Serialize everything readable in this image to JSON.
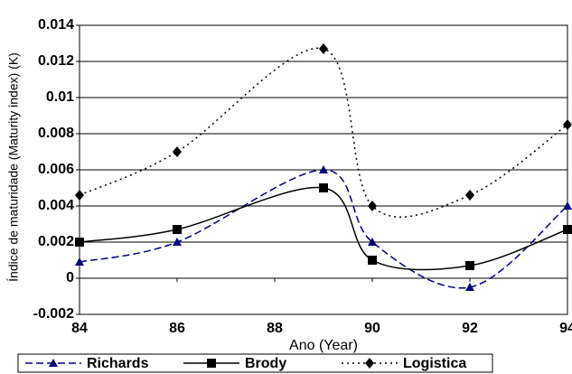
{
  "chart_data": {
    "type": "line",
    "xlabel": "Ano (Year)",
    "ylabel": "Índice de maturidade (Maturity index) (K)",
    "x": [
      84,
      86,
      89,
      90,
      92,
      94
    ],
    "xlim": [
      84,
      94
    ],
    "xticks": [
      84,
      86,
      88,
      90,
      92,
      94
    ],
    "ylim": [
      -0.002,
      0.014
    ],
    "yticks": [
      -0.002,
      0,
      0.002,
      0.004,
      0.006,
      0.008,
      0.01,
      0.012,
      0.014
    ],
    "grid": true,
    "smooth": true,
    "legend": "bottom",
    "series": [
      {
        "name": "Richards",
        "color": "#000080",
        "dash": "dashed",
        "marker": "triangle",
        "values": [
          0.0009,
          0.002,
          0.006,
          0.002,
          -0.0005,
          0.004
        ]
      },
      {
        "name": "Brody",
        "color": "#000000",
        "dash": "solid",
        "marker": "square",
        "values": [
          0.002,
          0.0027,
          0.005,
          0.001,
          0.0007,
          0.0027
        ]
      },
      {
        "name": "Logistica",
        "color": "#000000",
        "dash": "dotted",
        "marker": "diamond",
        "values": [
          0.0046,
          0.007,
          0.0127,
          0.004,
          0.0046,
          0.0085
        ]
      }
    ]
  }
}
